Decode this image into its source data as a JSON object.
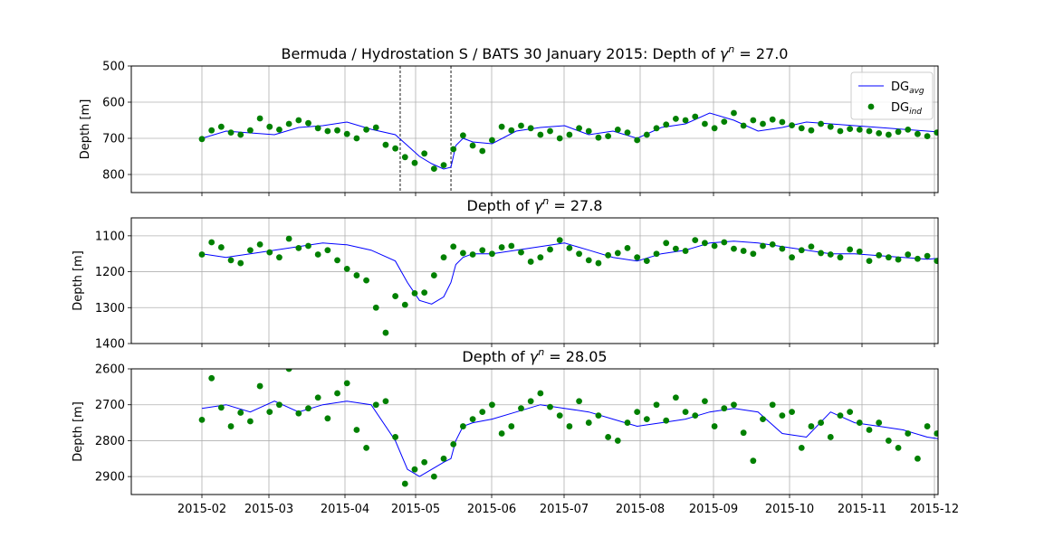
{
  "figure": {
    "title_main": "Bermuda / Hydrostation S / BATS 30 January 2015: Depth of",
    "gamma_symbol": "γ",
    "gamma_sup": "n",
    "legend": {
      "avg_base": "DG",
      "avg_sub": "avg",
      "ind_base": "DG",
      "ind_sub": "ind"
    },
    "x_ticks": [
      "2015-02",
      "2015-03",
      "2015-04",
      "2015-05",
      "2015-06",
      "2015-07",
      "2015-08",
      "2015-09",
      "2015-10",
      "2015-11",
      "2015-12"
    ]
  },
  "chart_data": [
    {
      "type": "line+scatter",
      "title_prefix": "Bermuda / Hydrostation S / BATS 30 January 2015: Depth of",
      "gamma_value": "27.0",
      "ylabel": "Depth [m]",
      "ylim": [
        500,
        850
      ],
      "y_inverted": true,
      "y_ticks": [
        "500",
        "600",
        "700",
        "800"
      ],
      "x_ticks_shown": false,
      "xlim": [
        0,
        335
      ],
      "vlines_x": [
        82,
        103
      ],
      "legend_position": "upper right",
      "series": [
        {
          "name": "DG_avg",
          "kind": "line",
          "color": "#0000ff",
          "x": [
            0,
            10,
            20,
            30,
            40,
            50,
            60,
            70,
            80,
            85,
            90,
            95,
            100,
            103,
            105,
            108,
            112,
            120,
            130,
            140,
            150,
            160,
            170,
            180,
            190,
            200,
            210,
            220,
            230,
            240,
            250,
            260,
            270,
            280,
            290,
            300,
            310,
            320,
            330
          ],
          "y": [
            700,
            680,
            685,
            690,
            670,
            665,
            655,
            675,
            690,
            720,
            750,
            770,
            785,
            780,
            720,
            700,
            710,
            715,
            680,
            670,
            665,
            690,
            680,
            700,
            670,
            660,
            630,
            650,
            680,
            670,
            655,
            660,
            665,
            670,
            675,
            680,
            685,
            690,
            690
          ]
        },
        {
          "name": "DG_ind",
          "kind": "scatter",
          "color": "#008000",
          "x": [
            0,
            4,
            8,
            12,
            16,
            20,
            24,
            28,
            32,
            36,
            40,
            44,
            48,
            52,
            56,
            60,
            64,
            68,
            72,
            76,
            80,
            84,
            88,
            92,
            96,
            100,
            104,
            108,
            112,
            116,
            120,
            124,
            128,
            132,
            136,
            140,
            144,
            148,
            152,
            156,
            160,
            164,
            168,
            172,
            176,
            180,
            184,
            188,
            192,
            196,
            200,
            204,
            208,
            212,
            216,
            220,
            224,
            228,
            232,
            236,
            240,
            244,
            248,
            252,
            256,
            260,
            264,
            268,
            272,
            276,
            280,
            284,
            288,
            292,
            296,
            300,
            304,
            308,
            312,
            316,
            320,
            324,
            328,
            332
          ],
          "y": [
            702,
            678,
            668,
            684,
            690,
            678,
            645,
            668,
            676,
            660,
            650,
            658,
            672,
            680,
            678,
            688,
            700,
            676,
            670,
            718,
            728,
            752,
            768,
            742,
            784,
            774,
            730,
            692,
            720,
            735,
            705,
            668,
            678,
            665,
            672,
            690,
            680,
            700,
            690,
            672,
            680,
            698,
            694,
            676,
            684,
            705,
            690,
            672,
            662,
            646,
            650,
            640,
            660,
            672,
            654,
            630,
            665,
            650,
            660,
            648,
            655,
            664,
            672,
            678,
            660,
            668,
            680,
            674,
            676,
            680,
            686,
            690,
            682,
            676,
            688,
            694,
            684,
            680,
            688,
            690,
            690,
            684,
            680,
            684
          ]
        }
      ]
    },
    {
      "type": "line+scatter",
      "title_prefix": "Depth of",
      "gamma_value": "27.8",
      "ylabel": "Depth [m]",
      "ylim": [
        1050,
        1400
      ],
      "y_inverted": true,
      "y_ticks": [
        "1100",
        "1200",
        "1300",
        "1400"
      ],
      "x_ticks_shown": false,
      "xlim": [
        0,
        335
      ],
      "series": [
        {
          "name": "DG_avg",
          "kind": "line",
          "color": "#0000ff",
          "x": [
            0,
            10,
            20,
            30,
            40,
            50,
            60,
            70,
            80,
            85,
            90,
            95,
            100,
            103,
            105,
            108,
            112,
            120,
            130,
            140,
            150,
            160,
            170,
            180,
            190,
            200,
            210,
            220,
            230,
            240,
            250,
            260,
            270,
            280,
            290,
            300,
            310,
            320,
            330
          ],
          "y": [
            1150,
            1160,
            1150,
            1140,
            1130,
            1120,
            1125,
            1140,
            1170,
            1230,
            1280,
            1290,
            1270,
            1230,
            1180,
            1160,
            1150,
            1150,
            1140,
            1130,
            1120,
            1140,
            1160,
            1170,
            1150,
            1140,
            1120,
            1115,
            1120,
            1130,
            1140,
            1150,
            1150,
            1155,
            1160,
            1165,
            1160,
            1150,
            1140
          ]
        },
        {
          "name": "DG_ind",
          "kind": "scatter",
          "color": "#008000",
          "x": [
            0,
            4,
            8,
            12,
            16,
            20,
            24,
            28,
            32,
            36,
            40,
            44,
            48,
            52,
            56,
            60,
            64,
            68,
            72,
            76,
            80,
            84,
            88,
            92,
            96,
            100,
            104,
            108,
            112,
            116,
            120,
            124,
            128,
            132,
            136,
            140,
            144,
            148,
            152,
            156,
            160,
            164,
            168,
            172,
            176,
            180,
            184,
            188,
            192,
            196,
            200,
            204,
            208,
            212,
            216,
            220,
            224,
            228,
            232,
            236,
            240,
            244,
            248,
            252,
            256,
            260,
            264,
            268,
            272,
            276,
            280,
            284,
            288,
            292,
            296,
            300,
            304,
            308,
            312,
            316,
            320,
            324,
            328,
            332
          ],
          "y": [
            1152,
            1118,
            1132,
            1168,
            1176,
            1140,
            1124,
            1146,
            1160,
            1108,
            1134,
            1128,
            1152,
            1140,
            1168,
            1192,
            1210,
            1224,
            1300,
            1370,
            1268,
            1292,
            1260,
            1258,
            1210,
            1160,
            1130,
            1148,
            1152,
            1140,
            1150,
            1132,
            1128,
            1146,
            1172,
            1160,
            1138,
            1112,
            1134,
            1150,
            1168,
            1176,
            1154,
            1148,
            1134,
            1160,
            1170,
            1150,
            1120,
            1136,
            1142,
            1112,
            1120,
            1128,
            1118,
            1136,
            1142,
            1150,
            1128,
            1124,
            1136,
            1160,
            1140,
            1130,
            1148,
            1152,
            1160,
            1138,
            1144,
            1170,
            1154,
            1160,
            1166,
            1152,
            1164,
            1156,
            1170,
            1160,
            1168,
            1150,
            1140,
            1132,
            1128,
            1130
          ]
        }
      ]
    },
    {
      "type": "line+scatter",
      "title_prefix": "Depth of",
      "gamma_value": "28.05",
      "ylabel": "Depth [m]",
      "ylim": [
        2600,
        2950
      ],
      "y_inverted": true,
      "y_ticks": [
        "2600",
        "2700",
        "2800",
        "2900"
      ],
      "x_ticks_shown": true,
      "xlim": [
        0,
        335
      ],
      "series": [
        {
          "name": "DG_avg",
          "kind": "line",
          "color": "#0000ff",
          "x": [
            0,
            10,
            20,
            30,
            40,
            50,
            60,
            70,
            80,
            85,
            90,
            95,
            100,
            103,
            105,
            108,
            112,
            120,
            130,
            140,
            150,
            160,
            170,
            180,
            190,
            200,
            210,
            220,
            230,
            240,
            250,
            260,
            270,
            280,
            290,
            300,
            310,
            320,
            330
          ],
          "y": [
            2710,
            2700,
            2720,
            2690,
            2720,
            2700,
            2690,
            2700,
            2800,
            2880,
            2900,
            2880,
            2860,
            2850,
            2800,
            2760,
            2750,
            2740,
            2720,
            2700,
            2710,
            2720,
            2740,
            2760,
            2750,
            2740,
            2720,
            2710,
            2720,
            2780,
            2790,
            2720,
            2750,
            2760,
            2770,
            2790,
            2800,
            2760,
            2760
          ]
        },
        {
          "name": "DG_ind",
          "kind": "scatter",
          "color": "#008000",
          "x": [
            0,
            4,
            8,
            12,
            16,
            20,
            24,
            28,
            32,
            36,
            40,
            44,
            48,
            52,
            56,
            60,
            64,
            68,
            72,
            76,
            80,
            84,
            88,
            92,
            96,
            100,
            104,
            108,
            112,
            116,
            120,
            124,
            128,
            132,
            136,
            140,
            144,
            148,
            152,
            156,
            160,
            164,
            168,
            172,
            176,
            180,
            184,
            188,
            192,
            196,
            200,
            204,
            208,
            212,
            216,
            220,
            224,
            228,
            232,
            236,
            240,
            244,
            248,
            252,
            256,
            260,
            264,
            268,
            272,
            276,
            280,
            284,
            288,
            292,
            296,
            300,
            304,
            308,
            312,
            316,
            320,
            324,
            328,
            332
          ],
          "y": [
            2742,
            2626,
            2708,
            2760,
            2722,
            2746,
            2648,
            2720,
            2700,
            2600,
            2724,
            2710,
            2680,
            2738,
            2668,
            2640,
            2770,
            2820,
            2700,
            2690,
            2790,
            2920,
            2880,
            2860,
            2900,
            2850,
            2810,
            2760,
            2740,
            2720,
            2700,
            2780,
            2760,
            2710,
            2690,
            2668,
            2706,
            2730,
            2760,
            2690,
            2750,
            2730,
            2790,
            2800,
            2750,
            2720,
            2740,
            2700,
            2744,
            2680,
            2720,
            2730,
            2690,
            2760,
            2710,
            2700,
            2778,
            2856,
            2740,
            2700,
            2730,
            2720,
            2820,
            2760,
            2750,
            2790,
            2730,
            2720,
            2750,
            2770,
            2750,
            2800,
            2820,
            2780,
            2850,
            2760,
            2780,
            2730,
            2790,
            2780,
            2760,
            2770,
            2760,
            2758
          ]
        }
      ]
    }
  ]
}
